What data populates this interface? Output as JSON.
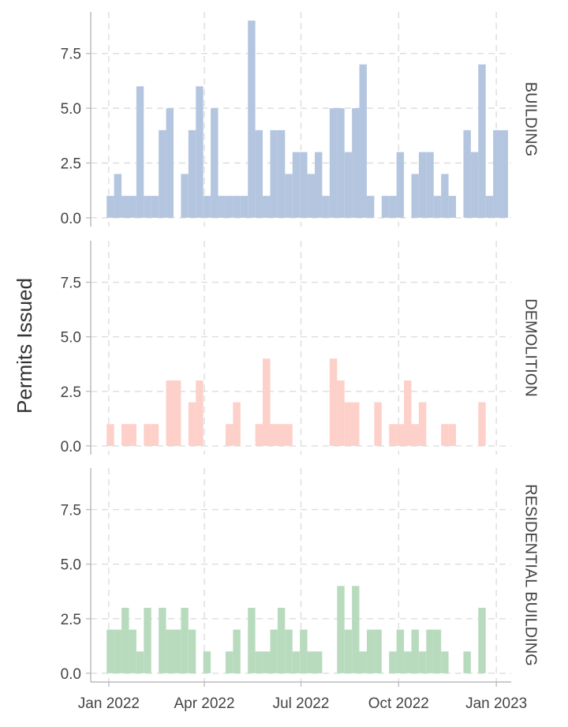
{
  "chart_data": {
    "type": "bar",
    "subtype": "faceted-weekly-histogram",
    "ylabel": "Permits Issued",
    "xlabel": "",
    "x_tick_labels": [
      "Jan 2022",
      "Apr 2022",
      "Jul 2022",
      "Oct 2022",
      "Jan 2023"
    ],
    "x_tick_dates": [
      "2022-01-01",
      "2022-04-01",
      "2022-07-01",
      "2022-10-01",
      "2023-01-01"
    ],
    "x_range": [
      "2021-12-15",
      "2023-01-15"
    ],
    "y_ticks": [
      0.0,
      2.5,
      5.0,
      7.5
    ],
    "y_tick_labels": [
      "0.0",
      "2.5",
      "5.0",
      "7.5"
    ],
    "ylim": [
      -0.4,
      9.4
    ],
    "grid": true,
    "bin_width_days": 7,
    "week_starts": [
      "2021-12-30",
      "2022-01-06",
      "2022-01-13",
      "2022-01-20",
      "2022-01-27",
      "2022-02-03",
      "2022-02-10",
      "2022-02-17",
      "2022-02-24",
      "2022-03-03",
      "2022-03-10",
      "2022-03-17",
      "2022-03-24",
      "2022-03-31",
      "2022-04-07",
      "2022-04-14",
      "2022-04-21",
      "2022-04-28",
      "2022-05-05",
      "2022-05-12",
      "2022-05-19",
      "2022-05-26",
      "2022-06-02",
      "2022-06-09",
      "2022-06-16",
      "2022-06-23",
      "2022-06-30",
      "2022-07-07",
      "2022-07-14",
      "2022-07-21",
      "2022-07-28",
      "2022-08-04",
      "2022-08-11",
      "2022-08-18",
      "2022-08-25",
      "2022-09-01",
      "2022-09-08",
      "2022-09-15",
      "2022-09-22",
      "2022-09-29",
      "2022-10-06",
      "2022-10-13",
      "2022-10-20",
      "2022-10-27",
      "2022-11-03",
      "2022-11-10",
      "2022-11-17",
      "2022-11-24",
      "2022-12-01",
      "2022-12-08",
      "2022-12-15",
      "2022-12-22",
      "2022-12-29",
      "2023-01-05"
    ],
    "series": [
      {
        "name": "BUILDING",
        "color": "#b4c5e0",
        "values": [
          1,
          2,
          1,
          1,
          6,
          1,
          1,
          4,
          5,
          0,
          2,
          4,
          6,
          1,
          5,
          1,
          1,
          1,
          1,
          9,
          4,
          1,
          4,
          4,
          2,
          3,
          3,
          2,
          3,
          1,
          5,
          5,
          3,
          5,
          7,
          1,
          0,
          1,
          1,
          3,
          0,
          2,
          3,
          3,
          1,
          2,
          1,
          0,
          4,
          3,
          7,
          1,
          4,
          4
        ]
      },
      {
        "name": "DEMOLITION",
        "color": "#fdd0c9",
        "values": [
          1,
          0,
          1,
          1,
          0,
          1,
          1,
          0,
          3,
          3,
          0,
          2,
          3,
          0,
          0,
          0,
          1,
          2,
          0,
          0,
          1,
          4,
          1,
          1,
          1,
          0,
          0,
          0,
          0,
          0,
          4,
          3,
          2,
          2,
          0,
          0,
          2,
          0,
          1,
          1,
          3,
          1,
          2,
          0,
          0,
          1,
          1,
          0,
          0,
          0,
          2,
          0,
          0,
          0
        ]
      },
      {
        "name": "RESIDENTIAL BUILDING",
        "color": "#b8dbbe",
        "values": [
          2,
          2,
          3,
          2,
          1,
          3,
          0,
          3,
          2,
          2,
          3,
          2,
          0,
          1,
          0,
          0,
          1,
          2,
          0,
          3,
          1,
          1,
          2,
          3,
          2,
          1,
          2,
          1,
          1,
          0,
          0,
          4,
          2,
          4,
          1,
          2,
          2,
          0,
          1,
          2,
          1,
          2,
          1,
          2,
          2,
          1,
          0,
          0,
          1,
          0,
          3,
          0,
          0,
          0
        ]
      }
    ]
  }
}
